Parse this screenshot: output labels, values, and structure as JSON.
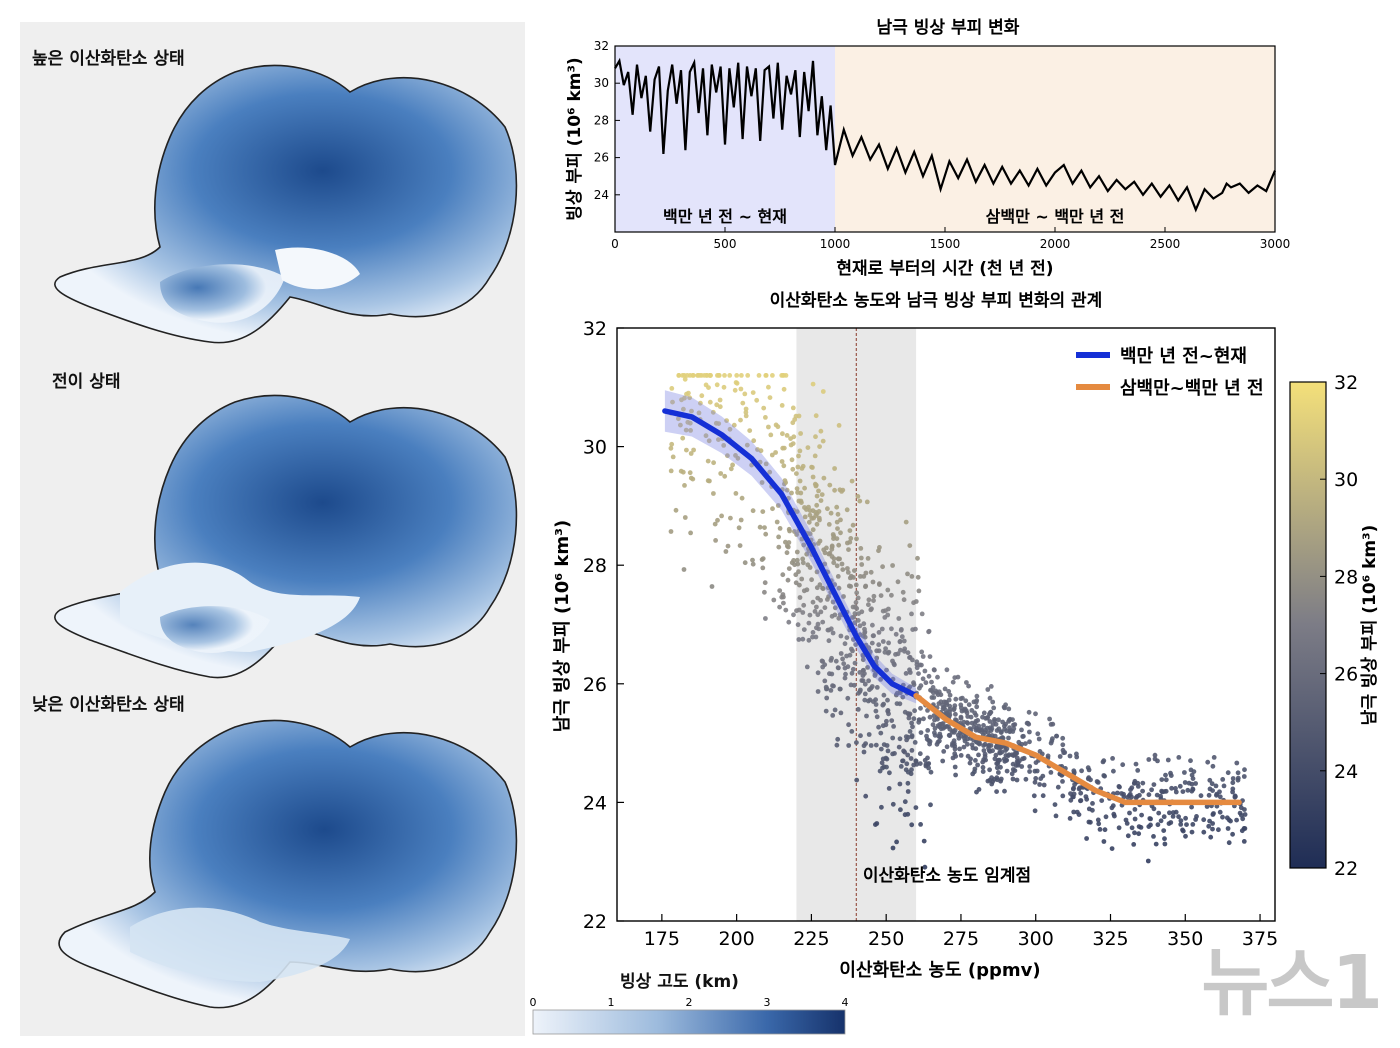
{
  "maps": {
    "high_co2_label": "높은 이산화탄소 상태",
    "transition_label": "전이 상태",
    "low_co2_label": "낮은 이산화탄소 상태"
  },
  "elevation_colorbar": {
    "label": "빙상 고도 (km)",
    "ticks": [
      "0",
      "1",
      "2",
      "3",
      "4"
    ],
    "colors": [
      "#eef3fa",
      "#16326b"
    ]
  },
  "watermark": "뉴스1",
  "chart_data": [
    {
      "type": "line",
      "title": "남극 빙상 부피 변화",
      "xlabel": "현재로 부터의 시간 (천 년 전)",
      "ylabel": "빙상 부피 (10⁶ km³)",
      "xlim": [
        0,
        3000
      ],
      "ylim": [
        22,
        32
      ],
      "x_ticks": [
        "0",
        "500",
        "1000",
        "1500",
        "2000",
        "2500",
        "3000"
      ],
      "y_ticks": [
        "24",
        "26",
        "28",
        "30",
        "32"
      ],
      "regions": [
        {
          "label": "백만 년 전 ~ 현재",
          "x0": 0,
          "x1": 1000,
          "color": "#e3e4fb"
        },
        {
          "label": "삼백만 ~ 백만 년 전",
          "x0": 1000,
          "x1": 3000,
          "color": "#fbf0e4"
        }
      ],
      "series": [
        {
          "color": "#000000",
          "x": [
            0,
            20,
            40,
            60,
            80,
            100,
            120,
            140,
            160,
            180,
            200,
            220,
            240,
            260,
            280,
            300,
            320,
            340,
            360,
            380,
            400,
            420,
            440,
            460,
            480,
            500,
            520,
            540,
            560,
            580,
            600,
            620,
            640,
            660,
            680,
            700,
            720,
            740,
            760,
            780,
            800,
            820,
            840,
            860,
            880,
            900,
            920,
            940,
            960,
            980,
            1000,
            1040,
            1080,
            1120,
            1160,
            1200,
            1240,
            1280,
            1320,
            1360,
            1400,
            1440,
            1480,
            1520,
            1560,
            1600,
            1640,
            1680,
            1720,
            1760,
            1800,
            1840,
            1880,
            1920,
            1960,
            2000,
            2040,
            2080,
            2120,
            2160,
            2200,
            2240,
            2280,
            2320,
            2360,
            2400,
            2440,
            2480,
            2520,
            2560,
            2600,
            2640,
            2680,
            2720,
            2760,
            2780,
            2800,
            2840,
            2880,
            2920,
            2960,
            3000
          ],
          "y": [
            30.8,
            31.2,
            29.9,
            30.6,
            28.3,
            31.0,
            29.2,
            30.4,
            27.4,
            30.2,
            30.9,
            26.2,
            29.6,
            31.0,
            28.9,
            30.7,
            26.4,
            30.6,
            31.1,
            28.4,
            30.8,
            27.2,
            31.0,
            29.5,
            30.9,
            26.7,
            30.8,
            28.7,
            31.1,
            27.0,
            30.9,
            29.3,
            30.8,
            26.9,
            30.7,
            30.9,
            28.1,
            31.1,
            27.5,
            30.4,
            29.4,
            30.7,
            27.1,
            30.6,
            28.5,
            31.2,
            27.2,
            29.3,
            26.4,
            28.8,
            25.6,
            27.5,
            26.1,
            27.1,
            25.9,
            26.7,
            25.4,
            26.5,
            25.2,
            26.3,
            25.0,
            26.1,
            24.3,
            25.8,
            24.9,
            25.9,
            24.7,
            25.6,
            24.6,
            25.5,
            24.6,
            25.3,
            24.5,
            25.4,
            24.5,
            25.2,
            25.6,
            24.6,
            25.3,
            24.4,
            25.0,
            24.2,
            24.8,
            24.3,
            24.7,
            24.0,
            24.6,
            23.9,
            24.5,
            23.7,
            24.4,
            23.2,
            24.3,
            23.8,
            24.1,
            24.6,
            24.4,
            24.6,
            24.1,
            24.5,
            24.2,
            25.3
          ]
        }
      ]
    },
    {
      "type": "scatter",
      "title": "이산화탄소 농도와 남극 빙상 부피 변화의 관계",
      "xlabel": "이산화탄소 농도 (ppmv)",
      "ylabel": "남극 빙상 부피 (10⁶ km³)",
      "xlim": [
        160,
        380
      ],
      "ylim": [
        22,
        32
      ],
      "x_ticks": [
        "175",
        "200",
        "225",
        "250",
        "275",
        "300",
        "325",
        "350",
        "375"
      ],
      "y_ticks": [
        "22",
        "24",
        "26",
        "28",
        "30",
        "32"
      ],
      "threshold": {
        "label": "이산화탄소 농도 임계점",
        "x": 240,
        "band": [
          220,
          260
        ]
      },
      "colorbar": {
        "label": "남극 빙상 부피 (10⁶ km³)",
        "ticks": [
          "22",
          "24",
          "26",
          "28",
          "30",
          "32"
        ],
        "range": [
          22,
          32
        ],
        "colors": [
          "#1f2d55",
          "#7c7c86",
          "#f4e07a"
        ]
      },
      "legend_position": "top-right",
      "series": [
        {
          "name": "백만 년 전~현재",
          "color": "#1530d6",
          "x": [
            176,
            185,
            195,
            205,
            215,
            225,
            232,
            240,
            246,
            252,
            256,
            260
          ],
          "y": [
            30.6,
            30.5,
            30.2,
            29.8,
            29.2,
            28.3,
            27.6,
            26.8,
            26.3,
            26.0,
            25.9,
            25.8
          ]
        },
        {
          "name": "삼백만~백만 년 전",
          "color": "#e58a40",
          "x": [
            260,
            270,
            280,
            290,
            300,
            310,
            320,
            330,
            340,
            350,
            360,
            368
          ],
          "y": [
            25.8,
            25.4,
            25.1,
            25.0,
            24.8,
            24.5,
            24.2,
            24.0,
            24.0,
            24.0,
            24.0,
            24.0
          ]
        }
      ]
    }
  ]
}
